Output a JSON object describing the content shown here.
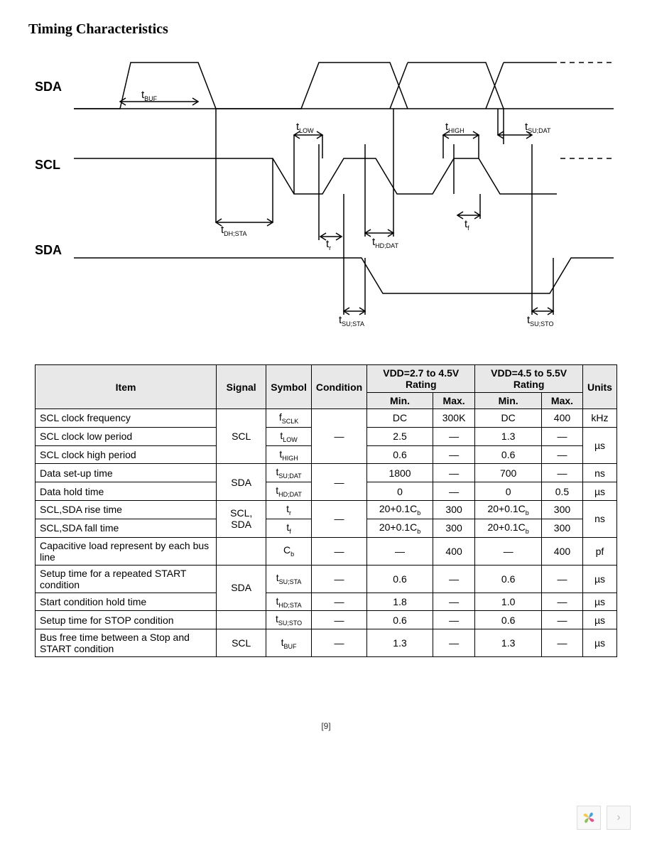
{
  "title": "Timing Characteristics",
  "page_num": "[9]",
  "diagram": {
    "signals": [
      "SDA",
      "SCL",
      "SDA"
    ],
    "params": [
      "tBUF",
      "tLOW",
      "tHIGH",
      "tSU;DAT",
      "tDH;STA",
      "tr",
      "tHD;DAT",
      "tf",
      "tSU;STA",
      "tSU;STO"
    ]
  },
  "table": {
    "headers": {
      "item": "Item",
      "signal": "Signal",
      "symbol": "Symbol",
      "condition": "Condition",
      "vdd1": "VDD=2.7 to 4.5V Rating",
      "vdd2": "VDD=4.5 to 5.5V Rating",
      "min": "Min.",
      "max": "Max.",
      "units": "Units"
    },
    "rows": [
      {
        "item": "SCL clock frequency",
        "signal": "SCL",
        "symbol": "f<sub>SCLK</sub>",
        "cond": "—",
        "v1min": "DC",
        "v1max": "300K",
        "v2min": "DC",
        "v2max": "400",
        "units": "kHz"
      },
      {
        "item": "SCL clock low period",
        "signal": "",
        "symbol": "t<sub>LOW</sub>",
        "cond": "",
        "v1min": "2.5",
        "v1max": "—",
        "v2min": "1.3",
        "v2max": "—",
        "units": "µs"
      },
      {
        "item": "SCL clock high period",
        "signal": "",
        "symbol": "t<sub>HIGH</sub>",
        "cond": "",
        "v1min": "0.6",
        "v1max": "—",
        "v2min": "0.6",
        "v2max": "—",
        "units": ""
      },
      {
        "item": "Data set-up time",
        "signal": "SDA",
        "symbol": "t<sub>SU;DAT</sub>",
        "cond": "—",
        "v1min": "1800",
        "v1max": "—",
        "v2min": "700",
        "v2max": "—",
        "units": "ns"
      },
      {
        "item": "Data hold time",
        "signal": "",
        "symbol": "t<sub>HD;DAT</sub>",
        "cond": "",
        "v1min": "0",
        "v1max": "—",
        "v2min": "0",
        "v2max": "0.5",
        "units": "µs"
      },
      {
        "item": "SCL,SDA rise time",
        "signal": "SCL, SDA",
        "symbol": "t<sub>r</sub>",
        "cond": "—",
        "v1min": "20+0.1C<sub>b</sub>",
        "v1max": "300",
        "v2min": "20+0.1C<sub>b</sub>",
        "v2max": "300",
        "units": "ns"
      },
      {
        "item": "SCL,SDA fall time",
        "signal": "",
        "symbol": "t<sub>f</sub>",
        "cond": "",
        "v1min": "20+0.1C<sub>b</sub>",
        "v1max": "300",
        "v2min": "20+0.1C<sub>b</sub>",
        "v2max": "300",
        "units": ""
      },
      {
        "item": "Capacitive load represent by each bus line",
        "signal": "",
        "symbol": "C<sub>b</sub>",
        "cond": "—",
        "v1min": "—",
        "v1max": "400",
        "v2min": "—",
        "v2max": "400",
        "units": "pf"
      },
      {
        "item": "Setup time for a repeated START condition",
        "signal": "SDA",
        "symbol": "t<sub>SU;STA</sub>",
        "cond": "—",
        "v1min": "0.6",
        "v1max": "—",
        "v2min": "0.6",
        "v2max": "—",
        "units": "µs"
      },
      {
        "item": "Start condition hold time",
        "signal": "",
        "symbol": "t<sub>HD;STA</sub>",
        "cond": "—",
        "v1min": "1.8",
        "v1max": "—",
        "v2min": "1.0",
        "v2max": "—",
        "units": "µs"
      },
      {
        "item": "Setup time for STOP condition",
        "signal": "",
        "symbol": "t<sub>SU;STO</sub>",
        "cond": "—",
        "v1min": "0.6",
        "v1max": "—",
        "v2min": "0.6",
        "v2max": "—",
        "units": "µs"
      },
      {
        "item": "Bus free time between a Stop and START condition",
        "signal": "SCL",
        "symbol": "t<sub>BUF</sub>",
        "cond": "—",
        "v1min": "1.3",
        "v1max": "—",
        "v2min": "1.3",
        "v2max": "—",
        "units": "µs"
      }
    ]
  },
  "footer_logo_colors": [
    "#f7c948",
    "#3ea6e0",
    "#e84d8a",
    "#8cc152"
  ]
}
